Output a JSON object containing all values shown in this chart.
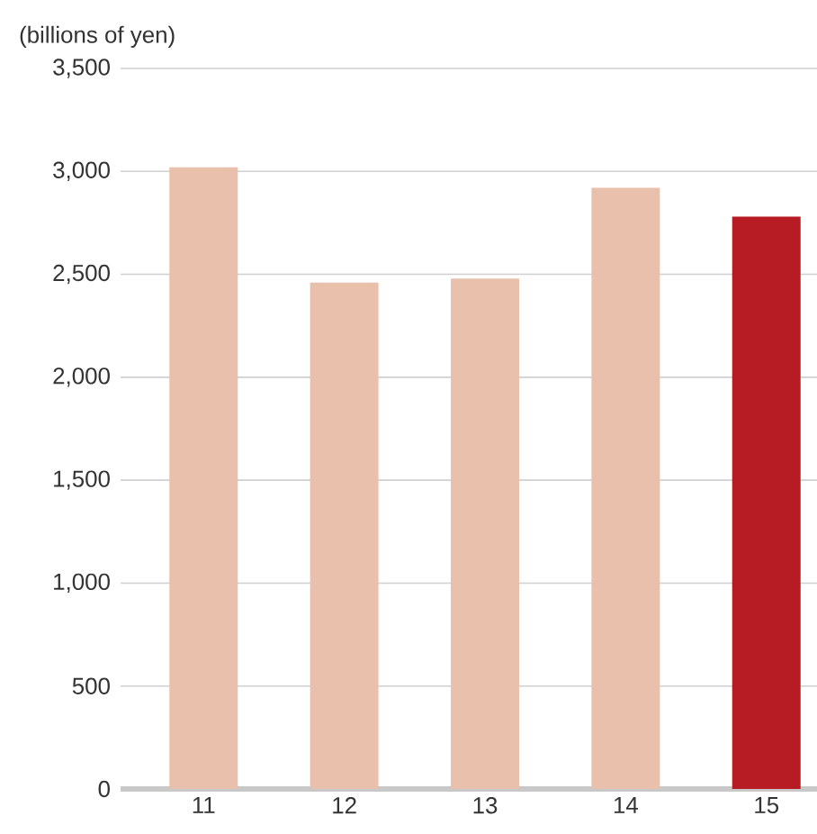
{
  "chart_data": {
    "type": "bar",
    "ylabel": "(billions of yen)",
    "categories": [
      "11",
      "12",
      "13",
      "14",
      "15"
    ],
    "values": [
      3020,
      2460,
      2480,
      2920,
      2780
    ],
    "colors": [
      "#e8c0ac",
      "#e8c0ac",
      "#e8c0ac",
      "#e8c0ac",
      "#b71c24"
    ],
    "ylim": [
      0,
      3500
    ],
    "yticks": [
      {
        "value": 0,
        "label": "0"
      },
      {
        "value": 500,
        "label": "500"
      },
      {
        "value": 1000,
        "label": "1,000"
      },
      {
        "value": 1500,
        "label": "1,500"
      },
      {
        "value": 2000,
        "label": "2,000"
      },
      {
        "value": 2500,
        "label": "2,500"
      },
      {
        "value": 3000,
        "label": "3,000"
      },
      {
        "value": 3500,
        "label": "3,500"
      }
    ],
    "grid": "y"
  }
}
